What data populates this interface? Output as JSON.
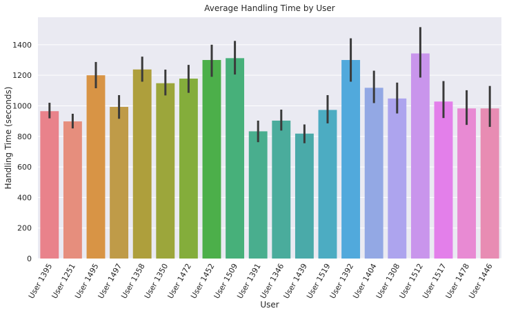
{
  "chart_data": {
    "type": "bar",
    "title": "Average Handling Time by User",
    "xlabel": "User",
    "ylabel": "Handling Time (seconds)",
    "ylim": [
      0,
      1580
    ],
    "yticks": [
      0,
      200,
      400,
      600,
      800,
      1000,
      1200,
      1400
    ],
    "grid": true,
    "background": "#eaeaf2",
    "gridColor": "#ffffff",
    "errorColor": "#3a3a3a",
    "categories": [
      "User 1395",
      "User 1251",
      "User 1495",
      "User 1497",
      "User 1358",
      "User 1350",
      "User 1472",
      "User 1452",
      "User 1509",
      "User 1391",
      "User 1346",
      "User 1439",
      "User 1519",
      "User 1392",
      "User 1404",
      "User 1308",
      "User 1512",
      "User 1517",
      "User 1478",
      "User 1446"
    ],
    "values": [
      965,
      898,
      1200,
      993,
      1238,
      1148,
      1178,
      1300,
      1312,
      833,
      903,
      818,
      973,
      1300,
      1118,
      1048,
      1343,
      1028,
      983,
      983
    ],
    "ci_low": [
      918,
      852,
      1115,
      915,
      1158,
      1068,
      1085,
      1190,
      1205,
      762,
      838,
      755,
      885,
      1158,
      1018,
      950,
      1185,
      920,
      875,
      862
    ],
    "ci_high": [
      1020,
      948,
      1287,
      1070,
      1322,
      1237,
      1268,
      1400,
      1425,
      903,
      975,
      878,
      1070,
      1442,
      1230,
      1152,
      1515,
      1162,
      1102,
      1130
    ],
    "colors": [
      "#e9828b",
      "#e68e7d",
      "#d89445",
      "#bf9b48",
      "#ae9f3c",
      "#9ca63b",
      "#84ad3b",
      "#4caf4a",
      "#47b07a",
      "#49ae8e",
      "#4aac9c",
      "#4aaaa9",
      "#4cacc2",
      "#51a9dc",
      "#93a8e4",
      "#ada4ee",
      "#c995ec",
      "#e37fea",
      "#e88ad3",
      "#e88cb3"
    ]
  }
}
